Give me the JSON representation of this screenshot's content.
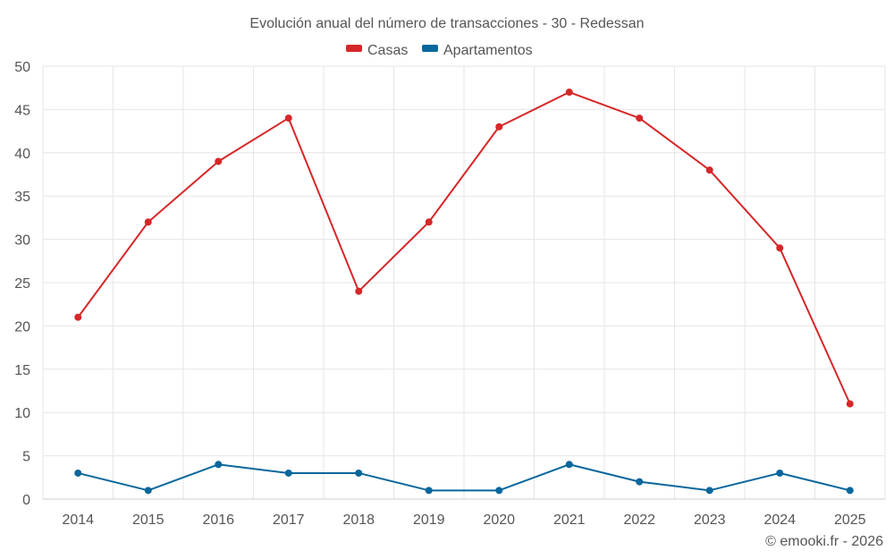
{
  "chart_data": {
    "type": "line",
    "title": "Evolución anual del número de transacciones - 30 - Redessan",
    "categories": [
      "2014",
      "2015",
      "2016",
      "2017",
      "2018",
      "2019",
      "2020",
      "2021",
      "2022",
      "2023",
      "2024",
      "2025"
    ],
    "series": [
      {
        "name": "Casas",
        "color": "#d62728",
        "values": [
          21,
          32,
          39,
          44,
          24,
          32,
          43,
          47,
          44,
          38,
          29,
          11
        ]
      },
      {
        "name": "Apartamentos",
        "color": "#08679c",
        "values": [
          3,
          1,
          4,
          3,
          3,
          1,
          1,
          4,
          2,
          1,
          3,
          1
        ]
      }
    ],
    "ylim": [
      0,
      50
    ],
    "yticks": [
      0,
      5,
      10,
      15,
      20,
      25,
      30,
      35,
      40,
      45,
      50
    ],
    "xlabel": "",
    "ylabel": "",
    "grid": true,
    "legend_position": "top-center"
  },
  "credit": "© emooki.fr - 2026"
}
